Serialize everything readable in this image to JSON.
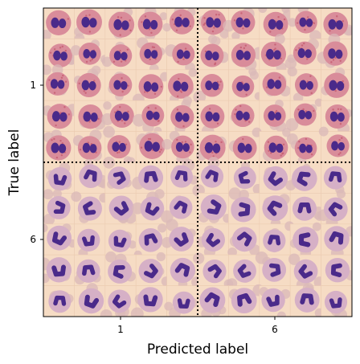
{
  "chart_data": {
    "type": "image_grid_confusion_matrix",
    "xlabel": "Predicted label",
    "ylabel": "True label",
    "x_categories": [
      "1",
      "6"
    ],
    "y_categories": [
      "1",
      "6"
    ],
    "cells": [
      {
        "true": "1",
        "predicted": "1",
        "cols": 5,
        "rows": 5,
        "cell_kind": "eosinophil"
      },
      {
        "true": "1",
        "predicted": "6",
        "cols": 5,
        "rows": 5,
        "cell_kind": "eosinophil"
      },
      {
        "true": "6",
        "predicted": "1",
        "cols": 5,
        "rows": 5,
        "cell_kind": "neutrophil"
      },
      {
        "true": "6",
        "predicted": "6",
        "cols": 5,
        "rows": 5,
        "cell_kind": "neutrophil"
      }
    ],
    "divider_style": "dotted",
    "colors": {
      "background": "#f6dcc4",
      "rbc": "#d9b8b8",
      "cytoplasm_eosinophil": "#d98c9a",
      "granule": "#c45a6e",
      "cytoplasm_neutrophil": "#d6b0c6",
      "nucleus": "#4a2a8a",
      "divider": "#000000"
    }
  }
}
